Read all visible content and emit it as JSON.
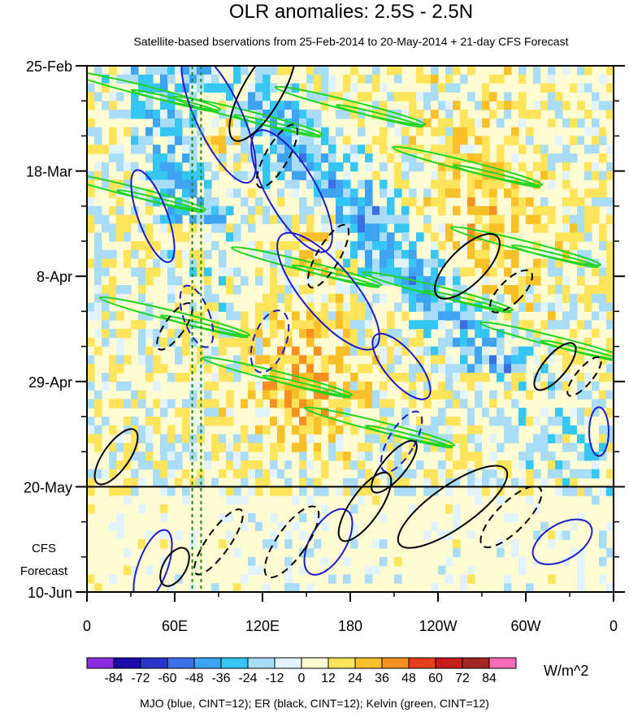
{
  "chart_data": {
    "type": "heatmap",
    "title": "OLR anomalies: 2.5S - 2.5N",
    "subtitle": "Satellite-based bservations from 25-Feb-2014 to 20-May-2014 + 21-day CFS Forecast",
    "x_tick_labels": [
      "0",
      "60E",
      "120E",
      "180",
      "120W",
      "60W",
      "0"
    ],
    "x_tick_longitudes": [
      0,
      60,
      120,
      180,
      240,
      300,
      360
    ],
    "xlim": [
      0,
      360
    ],
    "y_tick_labels": [
      "25-Feb",
      "18-Mar",
      "8-Apr",
      "29-Apr",
      "20-May",
      "10-Jun"
    ],
    "y_tick_days": [
      0,
      21,
      42,
      63,
      84,
      105
    ],
    "ylim_days": [
      0,
      105
    ],
    "observation_end_label": "20-May",
    "observation_end_day": 84,
    "forecast_label_line1": "CFS",
    "forecast_label_line2": "Forecast",
    "reference_longitudes": [
      72,
      78
    ],
    "colorbar": {
      "levels": [
        -84,
        -72,
        -60,
        -48,
        -36,
        -24,
        -12,
        0,
        12,
        24,
        36,
        48,
        60,
        72,
        84
      ],
      "colors": [
        "#8a2be2",
        "#1a0aa6",
        "#2a35c8",
        "#3a6fe6",
        "#3ea4f2",
        "#35c6f4",
        "#a9dcf7",
        "#e1f4fd",
        "#fffbd3",
        "#fde45a",
        "#f9c02a",
        "#f3901f",
        "#e63d1c",
        "#c81b1b",
        "#a32526",
        "#f56bb8"
      ],
      "units": "W/m^2"
    },
    "contours": {
      "mjo": {
        "color": "#1c1ccc",
        "cint": 12
      },
      "er": {
        "color": "#000000",
        "cint": 12
      },
      "kelvin": {
        "color": "#21d421",
        "cint": 12
      }
    },
    "footer": "MJO (blue, CINT=12); ER (black, CINT=12); Kelvin (green, CINT=12)"
  }
}
